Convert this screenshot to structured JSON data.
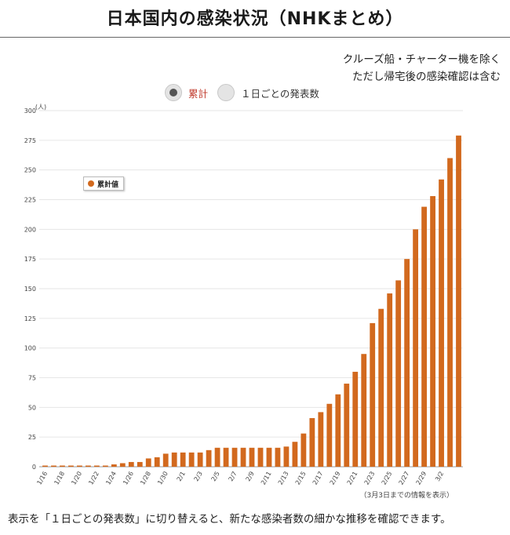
{
  "page": {
    "title": "日本国内の感染状況（NHKまとめ）",
    "note_line1": "クルーズ船・チャーター機を除く",
    "note_line2": "ただし帰宅後の感染確認は含む",
    "toggle_cumulative": "累計",
    "toggle_daily": "１日ごとの発表数",
    "source_note": "（3月3日までの情報を表示）",
    "footer": "表示を「１日ごとの発表数」に切り替えると、新たな感染者数の細かな推移を確認できます。"
  },
  "chart_data": {
    "type": "bar",
    "title": "",
    "ylabel": "(人)",
    "xlabel": "",
    "ylim": [
      0,
      300
    ],
    "yticks": [
      0,
      25,
      50,
      75,
      100,
      125,
      150,
      175,
      200,
      225,
      250,
      275,
      300
    ],
    "grid": true,
    "legend_position": "top-left",
    "bar_color": "#d2691e",
    "series": [
      {
        "name": "累計値",
        "values": [
          1,
          1,
          1,
          1,
          1,
          1,
          1,
          1,
          2,
          3,
          4,
          4,
          7,
          8,
          11,
          12,
          12,
          12,
          12,
          14,
          16,
          16,
          16,
          16,
          16,
          16,
          16,
          16,
          17,
          21,
          28,
          41,
          46,
          53,
          61,
          70,
          80,
          95,
          121,
          133,
          146,
          157,
          175,
          200,
          219,
          228,
          242,
          260,
          279
        ]
      }
    ],
    "categories": [
      "1/16",
      "1/17",
      "1/18",
      "1/19",
      "1/20",
      "1/21",
      "1/22",
      "1/23",
      "1/24",
      "1/25",
      "1/26",
      "1/27",
      "1/28",
      "1/29",
      "1/30",
      "1/31",
      "2/1",
      "2/2",
      "2/3",
      "2/4",
      "2/5",
      "2/6",
      "2/7",
      "2/8",
      "2/9",
      "2/10",
      "2/11",
      "2/12",
      "2/13",
      "2/14",
      "2/15",
      "2/16",
      "2/17",
      "2/18",
      "2/19",
      "2/20",
      "2/21",
      "2/22",
      "2/23",
      "2/24",
      "2/25",
      "2/26",
      "2/27",
      "2/28",
      "2/29",
      "3/1",
      "3/2",
      "3/3",
      "3/4"
    ],
    "x_tick_labels": [
      "1/16",
      "1/18",
      "1/20",
      "1/22",
      "1/24",
      "1/26",
      "1/28",
      "1/30",
      "2/1",
      "2/3",
      "2/5",
      "2/7",
      "2/9",
      "2/11",
      "2/13",
      "2/15",
      "2/17",
      "2/19",
      "2/21",
      "2/23",
      "2/25",
      "2/27",
      "2/29",
      "3/2"
    ]
  }
}
